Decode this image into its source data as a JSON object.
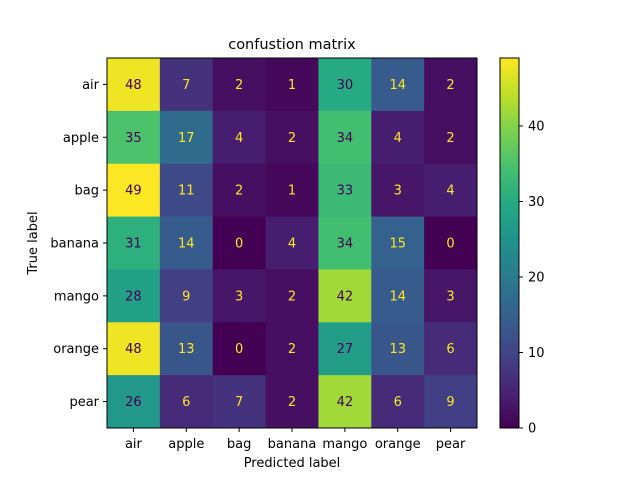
{
  "chart_data": {
    "type": "heatmap",
    "title": "confustion matrix",
    "xlabel": "Predicted label",
    "ylabel": "True label",
    "x_categories": [
      "air",
      "apple",
      "bag",
      "banana",
      "mango",
      "orange",
      "pear"
    ],
    "y_categories": [
      "air",
      "apple",
      "bag",
      "banana",
      "mango",
      "orange",
      "pear"
    ],
    "values": [
      [
        48,
        7,
        2,
        1,
        30,
        14,
        2
      ],
      [
        35,
        17,
        4,
        2,
        34,
        4,
        2
      ],
      [
        49,
        11,
        2,
        1,
        33,
        3,
        4
      ],
      [
        31,
        14,
        0,
        4,
        34,
        15,
        0
      ],
      [
        28,
        9,
        3,
        2,
        42,
        14,
        3
      ],
      [
        48,
        13,
        0,
        2,
        27,
        13,
        6
      ],
      [
        26,
        6,
        7,
        2,
        42,
        6,
        9
      ]
    ],
    "colormap": "viridis",
    "vmin": 0,
    "vmax": 49,
    "colorbar_ticks": [
      0,
      10,
      20,
      30,
      40
    ],
    "text_color_light": "#fde725",
    "text_color_dark": "#440154"
  }
}
